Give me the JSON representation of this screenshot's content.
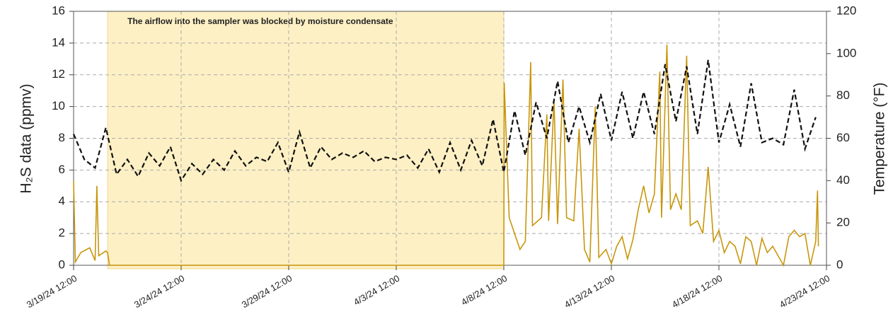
{
  "chart_data": {
    "type": "line",
    "xlim": [
      "3/19/24 12:00",
      "4/23/24 12:00"
    ],
    "xticks": [
      "3/19/24 12:00",
      "3/24/24 12:00",
      "3/29/24 12:00",
      "4/3/24 12:00",
      "4/8/24 12:00",
      "4/13/24 12:00",
      "4/18/24 12:00",
      "4/23/24 12:00"
    ],
    "ylim": [
      0,
      16
    ],
    "yticks": [
      0,
      2,
      4,
      6,
      8,
      10,
      12,
      14,
      16
    ],
    "y2lim": [
      0,
      120
    ],
    "y2ticks": [
      0,
      20,
      40,
      60,
      80,
      100,
      120
    ],
    "ylabel": "H₂S data (ppmv)",
    "y2label": "Temperature (°F)",
    "grid": true,
    "span": {
      "start": "3/21/24 02:00",
      "end": "4/8/24 12:00",
      "label": "The airflow into the sampler was blocked by moisture condensate",
      "color": "#fdf0c4"
    },
    "series": [
      {
        "color": "#c8960c",
        "dash": false,
        "x": [
          "3/19/24 12:00",
          "3/19/24 14:00",
          "3/19/24 20:00",
          "3/20/24 06:00",
          "3/20/24 12:00",
          "3/20/24 14:00",
          "3/20/24 16:00",
          "3/21/24 00:00",
          "3/21/24 02:00",
          "3/21/24 04:00",
          "4/8/24 12:00",
          "4/8/24 12:30",
          "4/8/24 18:00",
          "4/9/24 06:00",
          "4/9/24 12:00",
          "4/9/24 18:00",
          "4/9/24 20:00",
          "4/10/24 06:00",
          "4/10/24 12:00",
          "4/10/24 14:00",
          "4/10/24 20:00",
          "4/11/24 00:00",
          "4/11/24 06:00",
          "4/11/24 10:00",
          "4/11/24 18:00",
          "4/12/24 00:00",
          "4/12/24 06:00",
          "4/12/24 12:00",
          "4/12/24 18:00",
          "4/12/24 22:00",
          "4/13/24 06:00",
          "4/13/24 12:00",
          "4/13/24 18:00",
          "4/14/24 00:00",
          "4/14/24 06:00",
          "4/14/24 12:00",
          "4/14/24 18:00",
          "4/15/24 00:00",
          "4/15/24 06:00",
          "4/15/24 12:00",
          "4/15/24 18:00",
          "4/15/24 20:00",
          "4/16/24 02:00",
          "4/16/24 06:00",
          "4/16/24 12:00",
          "4/16/24 18:00",
          "4/17/24 00:00",
          "4/17/24 04:00",
          "4/17/24 12:00",
          "4/17/24 18:00",
          "4/18/24 00:00",
          "4/18/24 06:00",
          "4/18/24 12:00",
          "4/18/24 18:00",
          "4/19/24 00:00",
          "4/19/24 06:00",
          "4/19/24 12:00",
          "4/19/24 18:00",
          "4/20/24 00:00",
          "4/20/24 06:00",
          "4/20/24 12:00",
          "4/20/24 18:00",
          "4/21/24 00:00",
          "4/21/24 06:00",
          "4/21/24 12:00",
          "4/21/24 18:00",
          "4/22/24 00:00",
          "4/22/24 06:00",
          "4/22/24 12:00",
          "4/22/24 18:00",
          "4/23/24 00:00",
          "4/23/24 02:00",
          "4/23/24 03:00"
        ],
        "values": [
          5.3,
          0.2,
          0.8,
          1.1,
          0.3,
          5.0,
          0.6,
          0.9,
          0.8,
          0,
          0,
          11.5,
          3.0,
          1.0,
          1.5,
          12.8,
          2.5,
          3.0,
          9.5,
          2.8,
          10.4,
          2.6,
          11.7,
          3.0,
          2.8,
          8.6,
          1.0,
          0.2,
          10.0,
          0.5,
          1.0,
          0.1,
          1.2,
          1.8,
          0.4,
          1.6,
          3.5,
          5.0,
          3.3,
          4.5,
          12.2,
          3.0,
          13.9,
          3.5,
          4.5,
          3.5,
          13.2,
          2.5,
          2.8,
          2.0,
          6.2,
          1.5,
          2.2,
          0.8,
          1.5,
          1.2,
          0.1,
          1.8,
          1.5,
          0,
          1.7,
          0.8,
          1.2,
          0.6,
          0,
          1.8,
          2.2,
          1.8,
          2.0,
          0,
          1.5,
          4.7,
          1.2
        ]
      },
      {
        "color": "#111111",
        "dash": true,
        "axis": "y2",
        "x": [
          "3/19/24 12:00",
          "3/20/24 00:00",
          "3/20/24 12:00",
          "3/21/24 00:00",
          "3/21/24 12:00",
          "3/22/24 00:00",
          "3/22/24 12:00",
          "3/23/24 00:00",
          "3/23/24 12:00",
          "3/24/24 00:00",
          "3/24/24 12:00",
          "3/25/24 00:00",
          "3/25/24 12:00",
          "3/26/24 00:00",
          "3/26/24 12:00",
          "3/27/24 00:00",
          "3/27/24 12:00",
          "3/28/24 00:00",
          "3/28/24 12:00",
          "3/29/24 00:00",
          "3/29/24 12:00",
          "3/30/24 00:00",
          "3/30/24 12:00",
          "3/31/24 00:00",
          "3/31/24 12:00",
          "4/1/24 00:00",
          "4/1/24 12:00",
          "4/2/24 00:00",
          "4/2/24 12:00",
          "4/3/24 00:00",
          "4/3/24 12:00",
          "4/4/24 00:00",
          "4/4/24 12:00",
          "4/5/24 00:00",
          "4/5/24 12:00",
          "4/6/24 00:00",
          "4/6/24 12:00",
          "4/7/24 00:00",
          "4/7/24 12:00",
          "4/8/24 00:00",
          "4/8/24 12:00",
          "4/9/24 00:00",
          "4/9/24 12:00",
          "4/10/24 00:00",
          "4/10/24 12:00",
          "4/11/24 00:00",
          "4/11/24 12:00",
          "4/12/24 00:00",
          "4/12/24 12:00",
          "4/13/24 00:00",
          "4/13/24 12:00",
          "4/14/24 00:00",
          "4/14/24 12:00",
          "4/15/24 00:00",
          "4/15/24 12:00",
          "4/16/24 00:00",
          "4/16/24 12:00",
          "4/17/24 00:00",
          "4/17/24 12:00",
          "4/18/24 00:00",
          "4/18/24 12:00",
          "4/19/24 00:00",
          "4/19/24 12:00",
          "4/20/24 00:00",
          "4/20/24 12:00",
          "4/21/24 00:00",
          "4/21/24 12:00",
          "4/22/24 00:00",
          "4/22/24 12:00",
          "4/23/24 00:00"
        ],
        "values": [
          62,
          50,
          46,
          65,
          43,
          50,
          42,
          53,
          47,
          56,
          40,
          48,
          43,
          50,
          45,
          54,
          47,
          51,
          49,
          58,
          44,
          63,
          46,
          56,
          50,
          53,
          51,
          54,
          49,
          51,
          50,
          52,
          46,
          55,
          44,
          58,
          45,
          59,
          47,
          69,
          44,
          73,
          52,
          77,
          60,
          87,
          58,
          75,
          58,
          81,
          59,
          82,
          60,
          82,
          62,
          95,
          68,
          94,
          62,
          97,
          58,
          76,
          56,
          86,
          58,
          60,
          57,
          83,
          55,
          70
        ]
      }
    ]
  }
}
